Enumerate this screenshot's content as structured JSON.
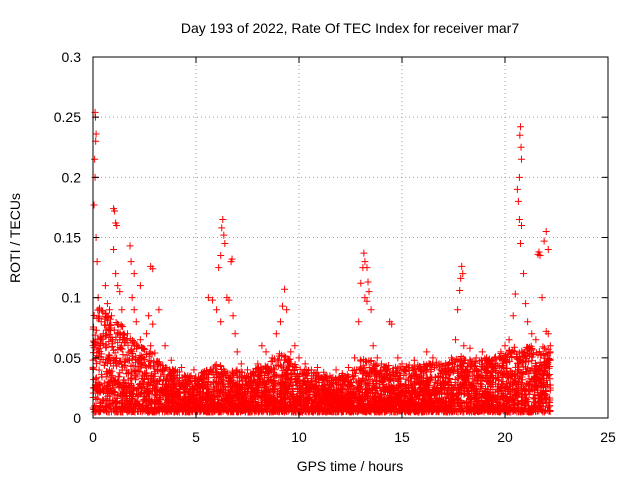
{
  "chart_data": {
    "type": "scatter",
    "title": "Day 193 of 2022, Rate Of TEC Index for receiver mar7",
    "xlabel": "GPS time / hours",
    "ylabel": "ROTI / TECUs",
    "xlim": [
      0,
      25
    ],
    "ylim": [
      0,
      0.3
    ],
    "xticks": [
      0,
      5,
      10,
      15,
      20,
      25
    ],
    "xtick_labels": [
      "0",
      "5",
      "10",
      "15",
      "20",
      "25"
    ],
    "yticks": [
      0,
      0.05,
      0.1,
      0.15,
      0.2,
      0.25,
      0.3
    ],
    "ytick_labels": [
      "0",
      "0.05",
      "0.1",
      "0.15",
      "0.2",
      "0.25",
      "0.3"
    ],
    "grid": true,
    "marker": "+",
    "series": [
      {
        "color": "#ff0000",
        "points": [
          [
            0.1,
            0.254
          ],
          [
            0.12,
            0.25
          ],
          [
            0.15,
            0.236
          ],
          [
            0.13,
            0.23
          ],
          [
            0.08,
            0.215
          ],
          [
            0.1,
            0.2
          ],
          [
            0.05,
            0.177
          ],
          [
            0.15,
            0.15
          ],
          [
            0.2,
            0.13
          ],
          [
            0.25,
            0.1
          ],
          [
            0.3,
            0.09
          ],
          [
            0.4,
            0.08
          ],
          [
            0.5,
            0.07
          ],
          [
            0.6,
            0.11
          ],
          [
            0.7,
            0.095
          ],
          [
            0.8,
            0.09
          ],
          [
            0.9,
            0.085
          ],
          [
            1.0,
            0.174
          ],
          [
            1.05,
            0.172
          ],
          [
            1.1,
            0.162
          ],
          [
            1.15,
            0.16
          ],
          [
            1.0,
            0.14
          ],
          [
            1.1,
            0.12
          ],
          [
            1.2,
            0.11
          ],
          [
            1.3,
            0.105
          ],
          [
            1.4,
            0.09
          ],
          [
            1.5,
            0.07
          ],
          [
            1.8,
            0.143
          ],
          [
            1.85,
            0.13
          ],
          [
            1.9,
            0.1
          ],
          [
            2.0,
            0.09
          ],
          [
            2.1,
            0.08
          ],
          [
            2.3,
            0.065
          ],
          [
            2.6,
            0.07
          ],
          [
            2.8,
            0.06
          ],
          [
            3.0,
            0.054
          ],
          [
            3.2,
            0.045
          ],
          [
            2.7,
            0.085
          ],
          [
            2.9,
            0.078
          ],
          [
            3.2,
            0.09
          ],
          [
            3.5,
            0.06
          ],
          [
            3.8,
            0.048
          ],
          [
            4.0,
            0.04
          ],
          [
            4.3,
            0.042
          ],
          [
            4.6,
            0.035
          ],
          [
            4.9,
            0.04
          ],
          [
            2.0,
            0.12
          ],
          [
            2.3,
            0.11
          ],
          [
            2.8,
            0.126
          ],
          [
            2.9,
            0.124
          ],
          [
            5.6,
            0.1
          ],
          [
            5.8,
            0.098
          ],
          [
            6.0,
            0.09
          ],
          [
            6.2,
            0.08
          ],
          [
            6.1,
            0.125
          ],
          [
            6.2,
            0.135
          ],
          [
            6.25,
            0.158
          ],
          [
            6.3,
            0.165
          ],
          [
            6.35,
            0.152
          ],
          [
            6.4,
            0.145
          ],
          [
            6.5,
            0.1
          ],
          [
            6.6,
            0.098
          ],
          [
            6.7,
            0.13
          ],
          [
            6.75,
            0.132
          ],
          [
            6.8,
            0.085
          ],
          [
            6.9,
            0.07
          ],
          [
            7.0,
            0.055
          ],
          [
            7.2,
            0.045
          ],
          [
            7.5,
            0.04
          ],
          [
            7.8,
            0.038
          ],
          [
            8.0,
            0.045
          ],
          [
            8.2,
            0.06
          ],
          [
            8.4,
            0.055
          ],
          [
            8.7,
            0.05
          ],
          [
            8.9,
            0.07
          ],
          [
            9.1,
            0.08
          ],
          [
            9.2,
            0.093
          ],
          [
            9.3,
            0.107
          ],
          [
            9.4,
            0.09
          ],
          [
            9.6,
            0.055
          ],
          [
            9.8,
            0.06
          ],
          [
            10.0,
            0.05
          ],
          [
            10.3,
            0.045
          ],
          [
            10.6,
            0.04
          ],
          [
            10.9,
            0.042
          ],
          [
            11.2,
            0.038
          ],
          [
            11.5,
            0.035
          ],
          [
            11.8,
            0.04
          ],
          [
            12.1,
            0.037
          ],
          [
            12.4,
            0.042
          ],
          [
            12.7,
            0.05
          ],
          [
            12.9,
            0.08
          ],
          [
            13.0,
            0.112
          ],
          [
            13.1,
            0.125
          ],
          [
            13.15,
            0.137
          ],
          [
            13.2,
            0.13
          ],
          [
            13.3,
            0.125
          ],
          [
            13.35,
            0.113
          ],
          [
            13.4,
            0.105
          ],
          [
            13.5,
            0.09
          ],
          [
            13.2,
            0.1
          ],
          [
            13.3,
            0.097
          ],
          [
            13.6,
            0.06
          ],
          [
            13.8,
            0.05
          ],
          [
            14.0,
            0.045
          ],
          [
            14.2,
            0.042
          ],
          [
            14.4,
            0.08
          ],
          [
            14.5,
            0.078
          ],
          [
            14.8,
            0.05
          ],
          [
            15.0,
            0.045
          ],
          [
            15.3,
            0.042
          ],
          [
            15.6,
            0.048
          ],
          [
            15.9,
            0.04
          ],
          [
            16.2,
            0.055
          ],
          [
            16.5,
            0.05
          ],
          [
            16.8,
            0.045
          ],
          [
            17.1,
            0.04
          ],
          [
            17.4,
            0.05
          ],
          [
            17.6,
            0.065
          ],
          [
            17.7,
            0.09
          ],
          [
            17.8,
            0.106
          ],
          [
            17.85,
            0.116
          ],
          [
            17.9,
            0.126
          ],
          [
            17.95,
            0.12
          ],
          [
            18.0,
            0.06
          ],
          [
            18.3,
            0.058
          ],
          [
            18.6,
            0.05
          ],
          [
            18.9,
            0.055
          ],
          [
            19.2,
            0.048
          ],
          [
            19.5,
            0.05
          ],
          [
            19.8,
            0.055
          ],
          [
            20.0,
            0.06
          ],
          [
            20.2,
            0.065
          ],
          [
            20.4,
            0.085
          ],
          [
            20.5,
            0.103
          ],
          [
            20.6,
            0.19
          ],
          [
            20.65,
            0.18
          ],
          [
            20.7,
            0.2
          ],
          [
            20.72,
            0.235
          ],
          [
            20.75,
            0.242
          ],
          [
            20.78,
            0.225
          ],
          [
            20.8,
            0.215
          ],
          [
            20.7,
            0.165
          ],
          [
            20.75,
            0.145
          ],
          [
            20.8,
            0.16
          ],
          [
            20.9,
            0.12
          ],
          [
            21.0,
            0.095
          ],
          [
            21.1,
            0.08
          ],
          [
            21.3,
            0.07
          ],
          [
            21.5,
            0.065
          ],
          [
            21.6,
            0.136
          ],
          [
            21.65,
            0.138
          ],
          [
            21.7,
            0.135
          ],
          [
            21.9,
            0.147
          ],
          [
            22.0,
            0.155
          ],
          [
            22.1,
            0.14
          ],
          [
            21.8,
            0.1
          ],
          [
            22.0,
            0.072
          ],
          [
            22.1,
            0.07
          ],
          [
            22.2,
            0.06
          ]
        ],
        "dense_band": {
          "x_range": [
            0,
            22.2
          ],
          "points_per_hour": 220,
          "envelope": [
            [
              0,
              0.095
            ],
            [
              0.5,
              0.09
            ],
            [
              1,
              0.085
            ],
            [
              1.5,
              0.075
            ],
            [
              2,
              0.065
            ],
            [
              2.5,
              0.06
            ],
            [
              3,
              0.052
            ],
            [
              3.5,
              0.045
            ],
            [
              4,
              0.04
            ],
            [
              4.5,
              0.036
            ],
            [
              5,
              0.035
            ],
            [
              5.5,
              0.04
            ],
            [
              6,
              0.045
            ],
            [
              6.5,
              0.042
            ],
            [
              7,
              0.04
            ],
            [
              7.5,
              0.038
            ],
            [
              8,
              0.042
            ],
            [
              8.5,
              0.05
            ],
            [
              9,
              0.055
            ],
            [
              9.5,
              0.05
            ],
            [
              10,
              0.042
            ],
            [
              10.5,
              0.04
            ],
            [
              11,
              0.037
            ],
            [
              11.5,
              0.035
            ],
            [
              12,
              0.035
            ],
            [
              12.5,
              0.038
            ],
            [
              13,
              0.05
            ],
            [
              13.5,
              0.05
            ],
            [
              14,
              0.042
            ],
            [
              14.5,
              0.045
            ],
            [
              15,
              0.042
            ],
            [
              15.5,
              0.045
            ],
            [
              16,
              0.045
            ],
            [
              16.5,
              0.047
            ],
            [
              17,
              0.045
            ],
            [
              17.5,
              0.05
            ],
            [
              18,
              0.052
            ],
            [
              18.5,
              0.048
            ],
            [
              19,
              0.05
            ],
            [
              19.5,
              0.052
            ],
            [
              20,
              0.055
            ],
            [
              20.5,
              0.06
            ],
            [
              21,
              0.062
            ],
            [
              21.5,
              0.058
            ],
            [
              22,
              0.06
            ],
            [
              22.2,
              0.055
            ]
          ],
          "floor": 0.005
        }
      }
    ]
  }
}
